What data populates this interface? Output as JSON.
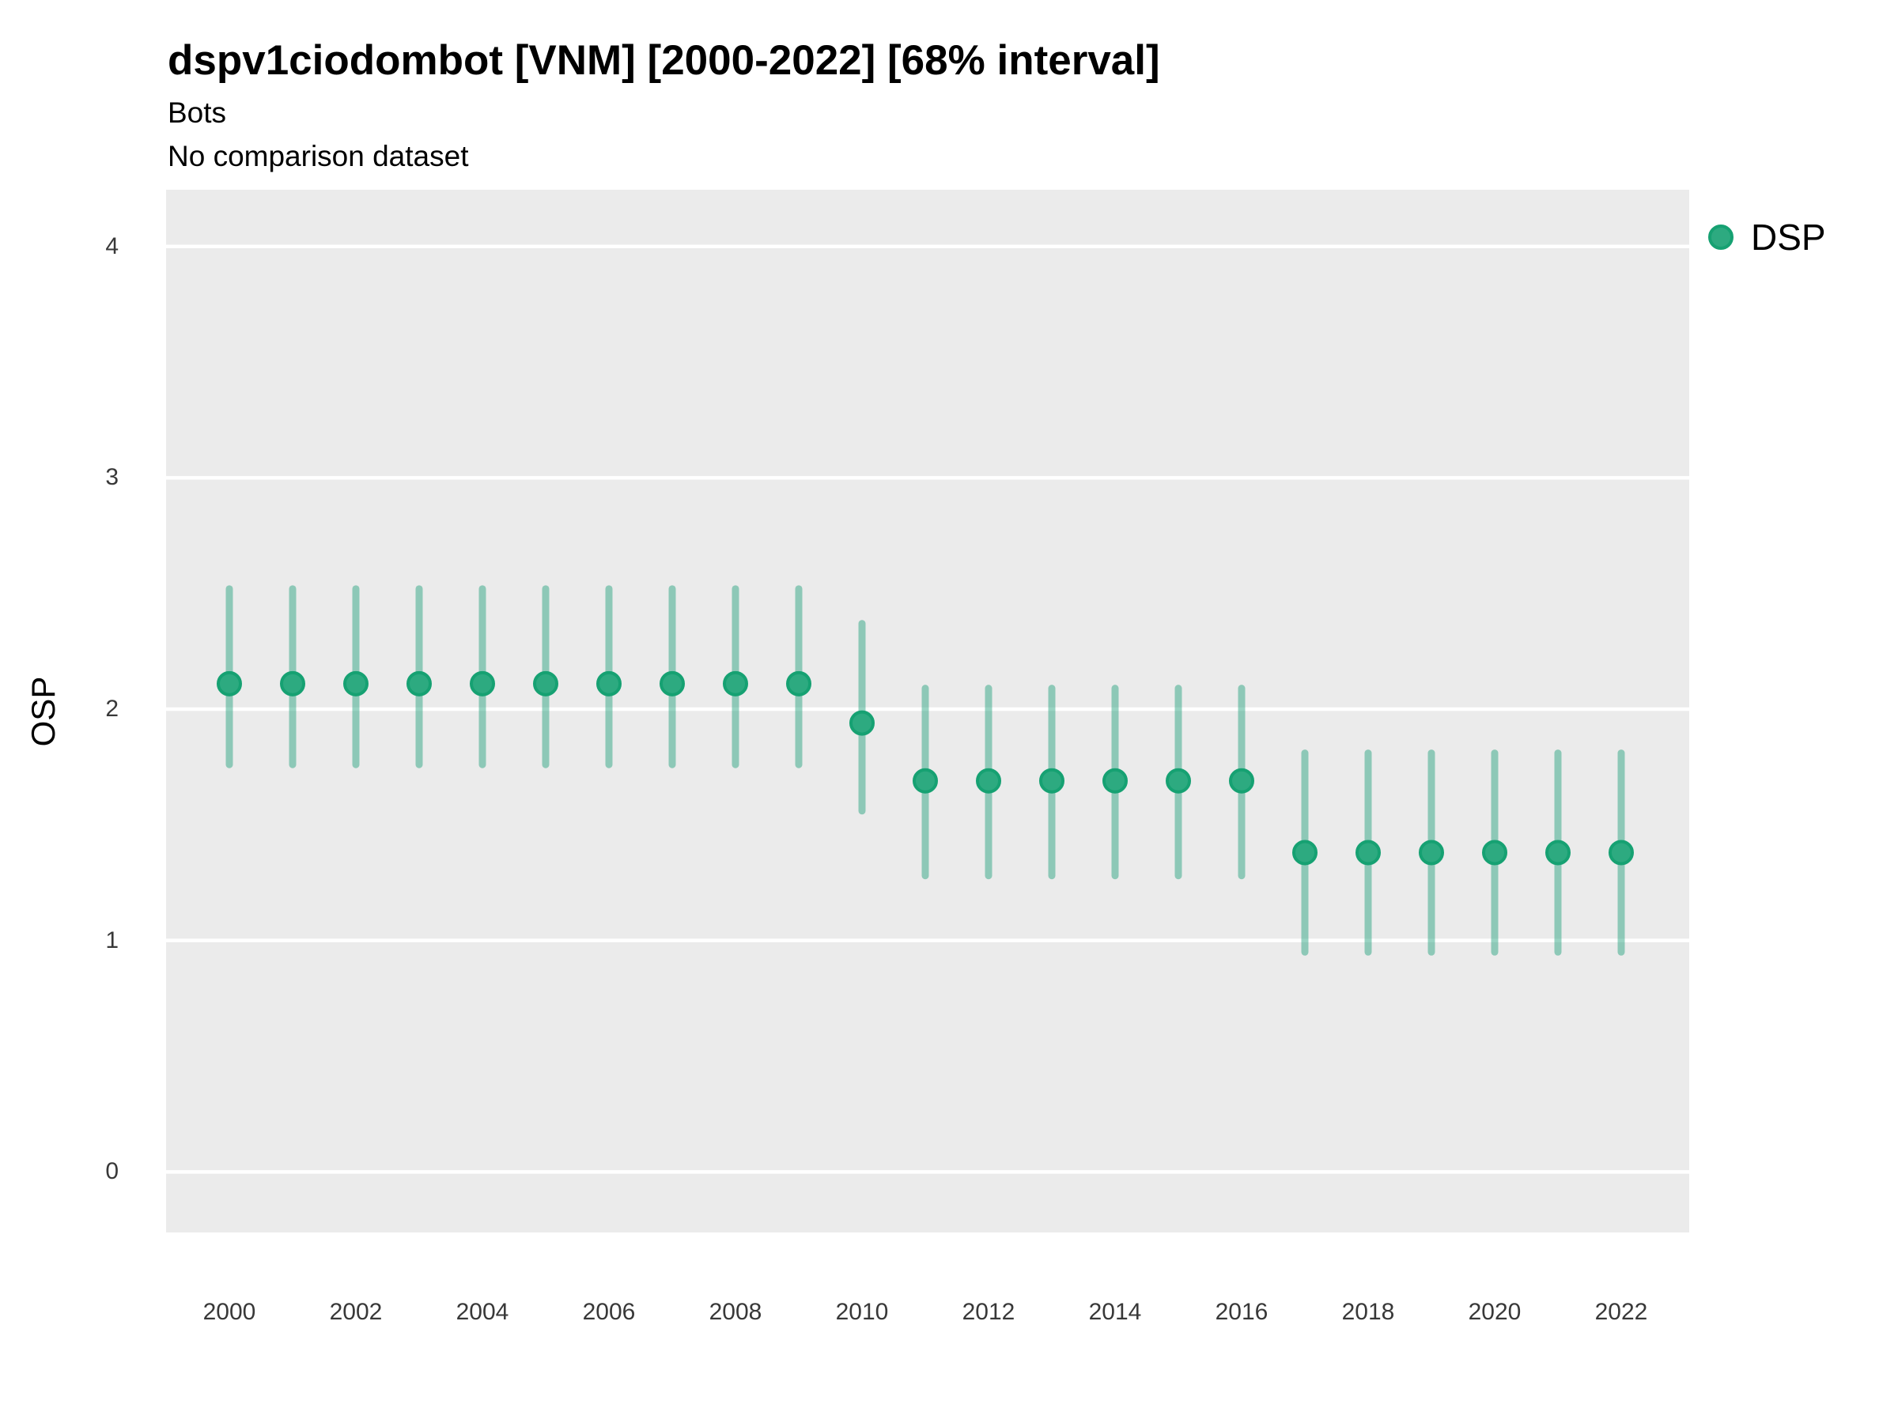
{
  "header": {
    "title": "dspv1ciodombot [VNM] [2000-2022] [68% interval]",
    "subtitle1": "Bots",
    "subtitle2": "No comparison dataset"
  },
  "legend": {
    "items": [
      {
        "label": "DSP",
        "color": "#2DAA80",
        "ring_color": "#16A172"
      }
    ]
  },
  "colors": {
    "panel_background": "#EBEBEB",
    "gridline": "#FFFFFF",
    "point_fill": "#2DAA80",
    "point_stroke": "#16A172",
    "errorbar": "rgba(27,158,119,0.45)",
    "axis_text": "#383838"
  },
  "chart_data": {
    "type": "scatter",
    "title": "dspv1ciodombot [VNM] [2000-2022] [68% interval]",
    "subtitle": [
      "Bots",
      "No comparison dataset"
    ],
    "xlabel": "",
    "ylabel": "OSP",
    "interval": "68% interval",
    "grid": "horizontal major gridlines only, white on gray panel",
    "legend_position": "right-top",
    "x_ticks": [
      2000,
      2002,
      2004,
      2006,
      2008,
      2010,
      2012,
      2014,
      2016,
      2018,
      2020,
      2022
    ],
    "y_ticks": [
      0,
      1,
      2,
      3,
      4
    ],
    "xlim": [
      1999.0,
      2023.075
    ],
    "ylim": [
      -0.262,
      4.245
    ],
    "series": [
      {
        "name": "DSP",
        "color": "#2DAA80",
        "errorbar_color": "rgba(27,158,119,0.45)",
        "x": [
          2000,
          2001,
          2002,
          2003,
          2004,
          2005,
          2006,
          2007,
          2008,
          2009,
          2010,
          2011,
          2012,
          2013,
          2014,
          2015,
          2016,
          2017,
          2018,
          2019,
          2020,
          2021,
          2022
        ],
        "y": [
          2.11,
          2.11,
          2.11,
          2.11,
          2.11,
          2.11,
          2.11,
          2.11,
          2.11,
          2.11,
          1.94,
          1.69,
          1.69,
          1.69,
          1.69,
          1.69,
          1.69,
          1.38,
          1.38,
          1.38,
          1.38,
          1.38,
          1.38
        ],
        "y_low": [
          1.76,
          1.76,
          1.76,
          1.76,
          1.76,
          1.76,
          1.76,
          1.76,
          1.76,
          1.76,
          1.56,
          1.28,
          1.28,
          1.28,
          1.28,
          1.28,
          1.28,
          0.95,
          0.95,
          0.95,
          0.95,
          0.95,
          0.95
        ],
        "y_high": [
          2.52,
          2.52,
          2.52,
          2.52,
          2.52,
          2.52,
          2.52,
          2.52,
          2.52,
          2.52,
          2.37,
          2.09,
          2.09,
          2.09,
          2.09,
          2.09,
          2.09,
          1.81,
          1.81,
          1.81,
          1.81,
          1.81,
          1.81
        ]
      }
    ]
  }
}
